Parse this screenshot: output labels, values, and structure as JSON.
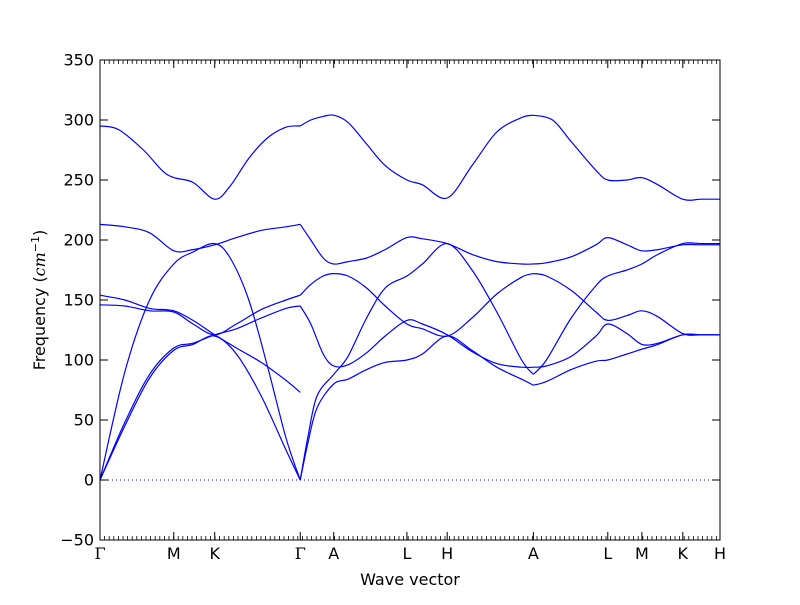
{
  "chart_data": {
    "type": "line",
    "title": "",
    "xlabel": "Wave vector",
    "ylabel": "Frequency (cm⁻¹)",
    "ylabel_prefix": "Frequency (",
    "ylabel_unit": "cm",
    "ylabel_exp": "−1",
    "ylabel_suffix": ")",
    "xlim": [
      0,
      1
    ],
    "ylim": [
      -50,
      350
    ],
    "y_ticks": [
      -50,
      0,
      50,
      100,
      150,
      200,
      250,
      300,
      350
    ],
    "y_tick_labels": [
      "−50",
      "0",
      "50",
      "100",
      "150",
      "200",
      "250",
      "300",
      "350"
    ],
    "x_ticks": [
      {
        "label": "Γ",
        "x": 0.0
      },
      {
        "label": "M",
        "x": 0.119
      },
      {
        "label": "K",
        "x": 0.185
      },
      {
        "label": "Γ",
        "x": 0.323
      },
      {
        "label": "A",
        "x": 0.377
      },
      {
        "label": "L",
        "x": 0.495
      },
      {
        "label": "H",
        "x": 0.56
      },
      {
        "label": "A",
        "x": 0.699
      },
      {
        "label": "L",
        "x": 0.819
      },
      {
        "label": "M",
        "x": 0.874
      },
      {
        "label": "K",
        "x": 0.94
      },
      {
        "label": "H",
        "x": 1.0
      }
    ],
    "zero_line": {
      "y": 0,
      "style": "dotted"
    },
    "line_color": "#0000ff",
    "grid": false,
    "legend": "none",
    "series": [
      {
        "x": [
          0,
          0.04,
          0.08,
          0.119,
          0.15,
          0.185,
          0.22,
          0.26,
          0.3,
          0.323
        ],
        "values": [
          0,
          45,
          85,
          108,
          113,
          120,
          105,
          70,
          25,
          0
        ]
      },
      {
        "x": [
          0,
          0.04,
          0.08,
          0.119,
          0.15,
          0.185,
          0.22,
          0.26,
          0.3,
          0.323
        ],
        "values": [
          0,
          48,
          88,
          110,
          114,
          121,
          126,
          135,
          143,
          145
        ]
      },
      {
        "x": [
          0,
          0.04,
          0.08,
          0.119,
          0.15,
          0.185,
          0.21,
          0.24,
          0.27,
          0.3,
          0.323
        ],
        "values": [
          0,
          90,
          150,
          180,
          190,
          197,
          185,
          150,
          95,
          35,
          0
        ]
      },
      {
        "x": [
          0,
          0.04,
          0.08,
          0.119,
          0.15,
          0.185,
          0.22,
          0.26,
          0.3,
          0.323
        ],
        "values": [
          154,
          150,
          143,
          141,
          133,
          121,
          110,
          98,
          83,
          73
        ]
      },
      {
        "x": [
          0,
          0.04,
          0.08,
          0.119,
          0.15,
          0.185,
          0.22,
          0.26,
          0.3,
          0.323
        ],
        "values": [
          146,
          145,
          141,
          140,
          130,
          121,
          130,
          142,
          150,
          154
        ]
      },
      {
        "x": [
          0,
          0.04,
          0.08,
          0.119,
          0.15,
          0.185,
          0.22,
          0.26,
          0.3,
          0.323
        ],
        "values": [
          213,
          211,
          206,
          191,
          192,
          196,
          202,
          208,
          211,
          213
        ]
      },
      {
        "x": [
          0,
          0.03,
          0.07,
          0.1,
          0.119,
          0.15,
          0.185,
          0.21,
          0.24,
          0.27,
          0.3,
          0.323
        ],
        "values": [
          295,
          292,
          275,
          258,
          252,
          248,
          234,
          245,
          268,
          285,
          294,
          295
        ]
      },
      {
        "x": [
          0.323,
          0.335,
          0.35,
          0.377,
          0.4,
          0.43,
          0.46,
          0.495,
          0.52,
          0.56,
          0.6,
          0.64,
          0.68,
          0.699
        ],
        "values": [
          0,
          30,
          60,
          80,
          84,
          92,
          98,
          100,
          105,
          120,
          108,
          94,
          84,
          79
        ]
      },
      {
        "x": [
          0.323,
          0.335,
          0.35,
          0.377,
          0.4,
          0.43,
          0.46,
          0.495,
          0.52,
          0.56,
          0.6,
          0.64,
          0.68,
          0.699
        ],
        "values": [
          0,
          35,
          70,
          88,
          103,
          135,
          160,
          170,
          180,
          197,
          175,
          140,
          100,
          88
        ]
      },
      {
        "x": [
          0.323,
          0.34,
          0.36,
          0.377,
          0.4,
          0.43,
          0.46,
          0.495,
          0.52,
          0.56,
          0.6,
          0.64,
          0.68,
          0.699
        ],
        "values": [
          154,
          163,
          170,
          172,
          170,
          160,
          145,
          130,
          126,
          120,
          135,
          155,
          169,
          172
        ]
      },
      {
        "x": [
          0.323,
          0.34,
          0.36,
          0.377,
          0.4,
          0.43,
          0.46,
          0.495,
          0.52,
          0.56,
          0.6,
          0.64,
          0.68,
          0.699
        ],
        "values": [
          145,
          130,
          105,
          95,
          96,
          106,
          120,
          133,
          130,
          121,
          107,
          97,
          94,
          94
        ]
      },
      {
        "x": [
          0.323,
          0.34,
          0.36,
          0.377,
          0.4,
          0.43,
          0.46,
          0.495,
          0.52,
          0.56,
          0.6,
          0.64,
          0.68,
          0.699
        ],
        "values": [
          213,
          200,
          185,
          180,
          182,
          185,
          192,
          202,
          201,
          197,
          188,
          182,
          180,
          180
        ]
      },
      {
        "x": [
          0.323,
          0.34,
          0.36,
          0.377,
          0.4,
          0.43,
          0.46,
          0.495,
          0.52,
          0.56,
          0.6,
          0.64,
          0.68,
          0.699
        ],
        "values": [
          295,
          300,
          303,
          304,
          298,
          280,
          262,
          250,
          246,
          235,
          262,
          290,
          302,
          304
        ]
      },
      {
        "x": [
          0.699,
          0.72,
          0.76,
          0.8,
          0.819,
          0.85,
          0.874,
          0.9,
          0.94,
          0.97,
          1.0
        ],
        "values": [
          79,
          82,
          92,
          99,
          100,
          105,
          109,
          113,
          121,
          121,
          121
        ]
      },
      {
        "x": [
          0.699,
          0.72,
          0.76,
          0.8,
          0.819,
          0.85,
          0.874,
          0.9,
          0.94,
          0.97,
          1.0
        ],
        "values": [
          94,
          95,
          103,
          120,
          130,
          122,
          113,
          114,
          121,
          121,
          121
        ]
      },
      {
        "x": [
          0.699,
          0.72,
          0.76,
          0.8,
          0.819,
          0.85,
          0.874,
          0.9,
          0.94,
          0.97,
          1.0
        ],
        "values": [
          172,
          170,
          158,
          140,
          133,
          137,
          141,
          136,
          122,
          121,
          121
        ]
      },
      {
        "x": [
          0.699,
          0.72,
          0.76,
          0.8,
          0.819,
          0.85,
          0.874,
          0.9,
          0.94,
          0.97,
          1.0
        ],
        "values": [
          88,
          100,
          135,
          162,
          170,
          175,
          180,
          188,
          197,
          197,
          197
        ]
      },
      {
        "x": [
          0.699,
          0.72,
          0.76,
          0.8,
          0.819,
          0.85,
          0.874,
          0.9,
          0.94,
          0.97,
          1.0
        ],
        "values": [
          180,
          181,
          186,
          196,
          202,
          196,
          191,
          192,
          196,
          196,
          196
        ]
      },
      {
        "x": [
          0.699,
          0.73,
          0.76,
          0.8,
          0.819,
          0.85,
          0.874,
          0.9,
          0.94,
          0.97,
          1.0
        ],
        "values": [
          304,
          300,
          282,
          258,
          250,
          250,
          252,
          246,
          234,
          234,
          234
        ]
      }
    ]
  }
}
